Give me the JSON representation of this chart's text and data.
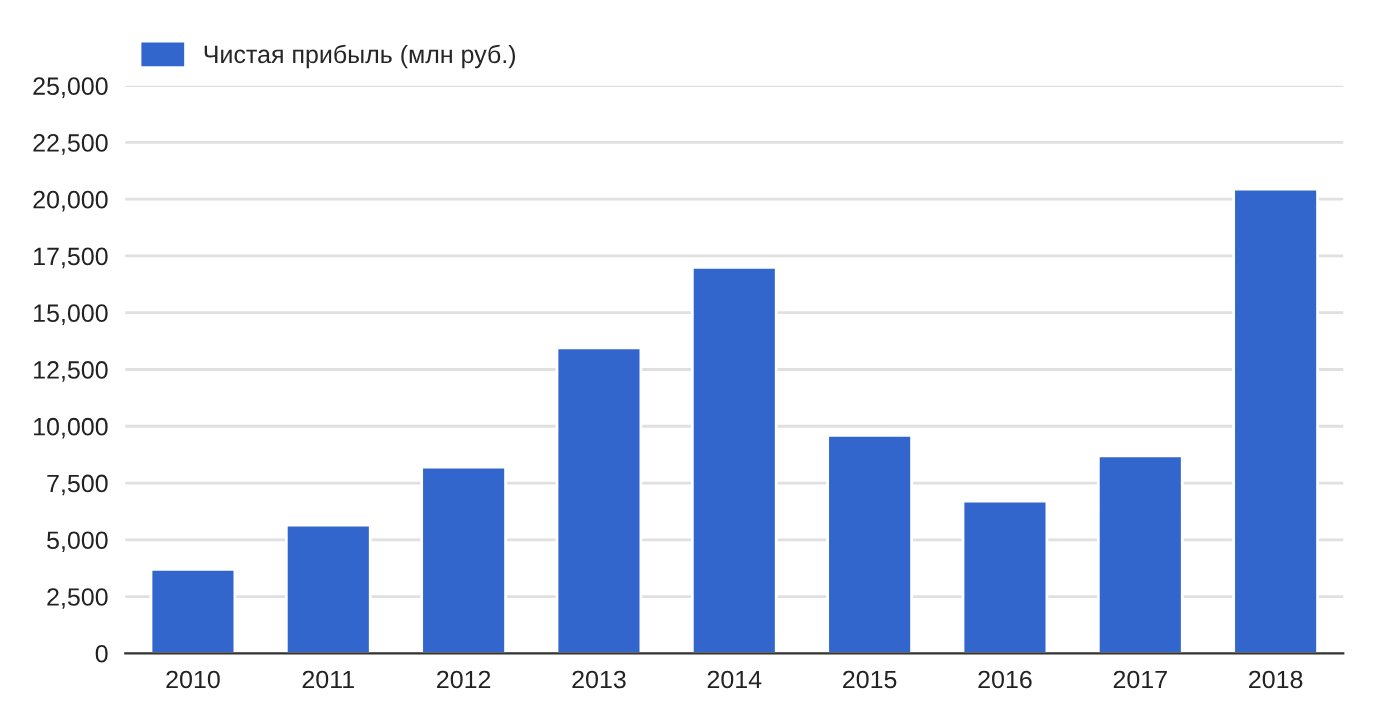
{
  "chart_data": {
    "type": "bar",
    "categories": [
      "2010",
      "2011",
      "2012",
      "2013",
      "2014",
      "2015",
      "2016",
      "2017",
      "2018"
    ],
    "series": [
      {
        "name": "Чистая прибыль (млн руб.)",
        "color": "#3366cc",
        "values": [
          3700,
          5650,
          8200,
          13450,
          17000,
          9600,
          6700,
          8700,
          20450
        ]
      }
    ],
    "ylim": [
      0,
      25000
    ],
    "yticks": [
      {
        "value": 0,
        "label": "0"
      },
      {
        "value": 2500,
        "label": "2,500"
      },
      {
        "value": 5000,
        "label": "5,000"
      },
      {
        "value": 7500,
        "label": "7,500"
      },
      {
        "value": 10000,
        "label": "10,000"
      },
      {
        "value": 12500,
        "label": "12,500"
      },
      {
        "value": 15000,
        "label": "15,000"
      },
      {
        "value": 17500,
        "label": "17,500"
      },
      {
        "value": 20000,
        "label": "20,000"
      },
      {
        "value": 22500,
        "label": "22,500"
      },
      {
        "value": 25000,
        "label": "25,000"
      }
    ],
    "grid": "y",
    "legend": "top left"
  }
}
